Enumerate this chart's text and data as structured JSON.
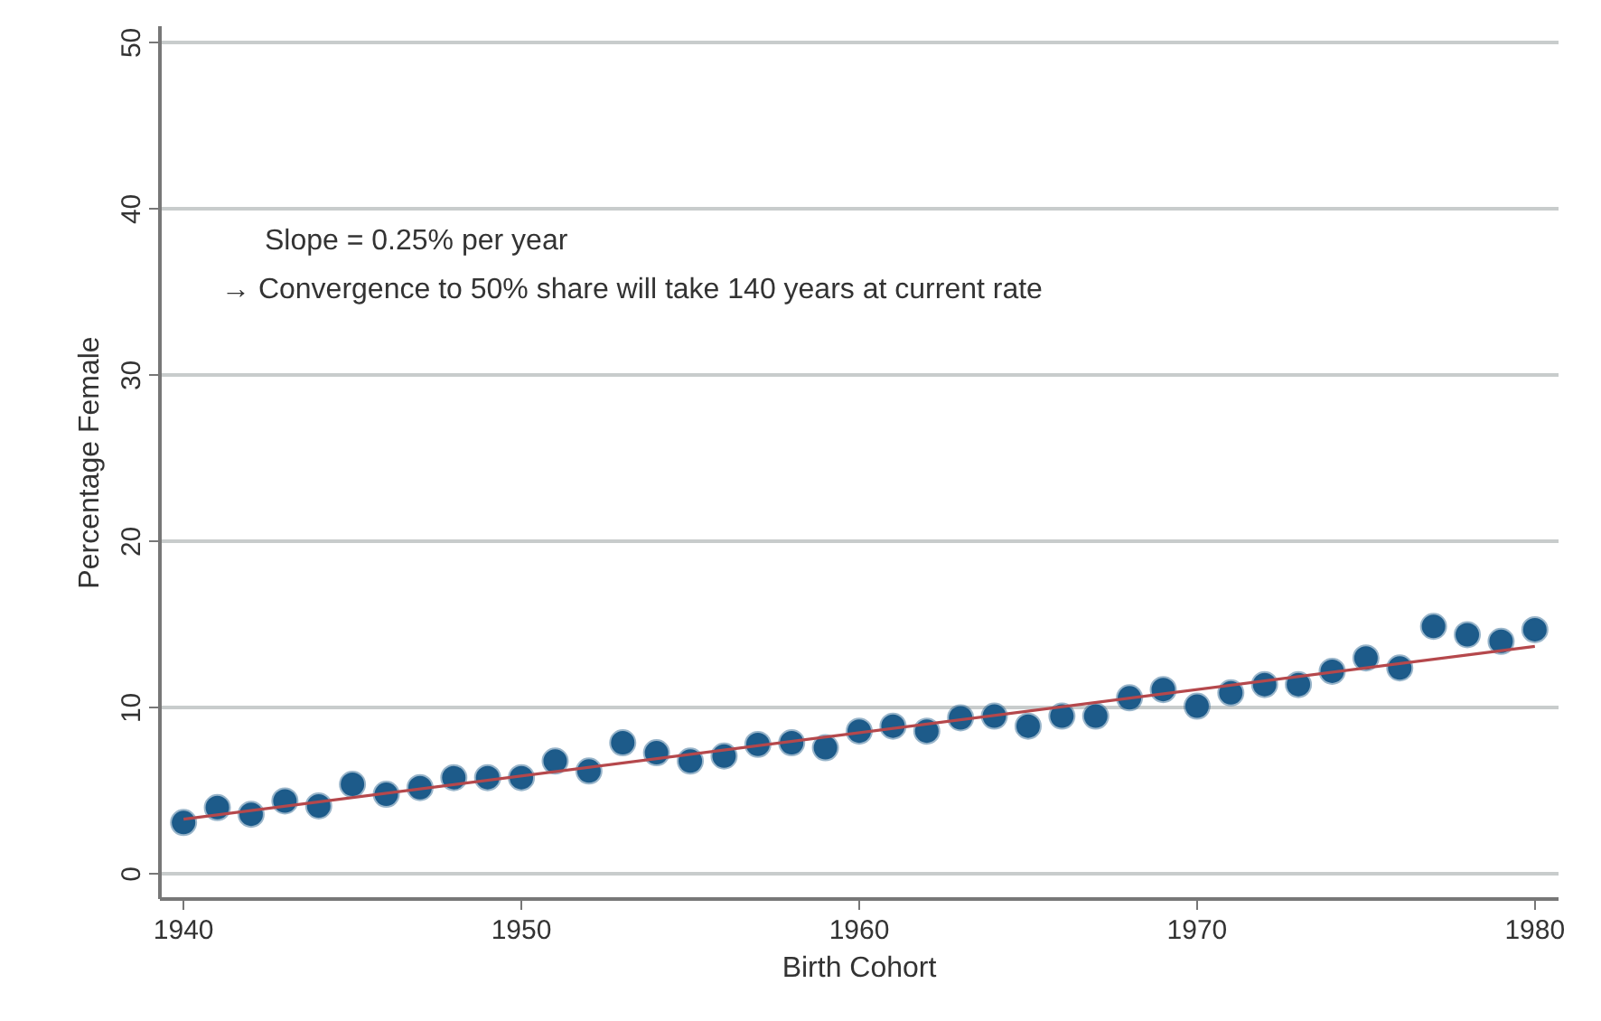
{
  "chart_data": {
    "type": "scatter",
    "xlabel": "Birth Cohort",
    "ylabel": "Percentage Female",
    "annotations": [
      "Slope = 0.25% per year",
      "→ Convergence to 50% share will take 140 years at current rate"
    ],
    "xlim": [
      1939.3,
      1980.7
    ],
    "ylim": [
      -1.5,
      51
    ],
    "xticks": [
      1940,
      1950,
      1960,
      1970,
      1980
    ],
    "yticks": [
      0,
      10,
      20,
      30,
      40,
      50
    ],
    "grid": "y",
    "marker": "circle",
    "series": [
      {
        "color": "#1d5b8a",
        "x": [
          1940,
          1941,
          1942,
          1943,
          1944,
          1945,
          1946,
          1947,
          1948,
          1949,
          1950,
          1951,
          1952,
          1953,
          1954,
          1955,
          1956,
          1957,
          1958,
          1959,
          1960,
          1961,
          1962,
          1963,
          1964,
          1965,
          1966,
          1967,
          1968,
          1969,
          1970,
          1971,
          1972,
          1973,
          1974,
          1975,
          1976,
          1977,
          1978,
          1979,
          1980
        ],
        "values": [
          3.1,
          4.0,
          3.6,
          4.4,
          4.1,
          5.4,
          4.8,
          5.2,
          5.8,
          5.8,
          5.8,
          6.8,
          6.2,
          7.9,
          7.3,
          6.8,
          7.1,
          7.8,
          7.9,
          7.6,
          8.6,
          8.9,
          8.6,
          9.4,
          9.5,
          8.9,
          9.5,
          9.5,
          10.6,
          11.1,
          10.1,
          10.9,
          11.4,
          11.4,
          12.2,
          13.0,
          12.4,
          14.9,
          14.4,
          14.0,
          14.7
        ]
      },
      {
        "type": "line",
        "color": "#b5484c",
        "marker": "none",
        "line_style": "solid",
        "x": [
          1940,
          1980
        ],
        "values": [
          3.3,
          13.7
        ]
      }
    ]
  }
}
